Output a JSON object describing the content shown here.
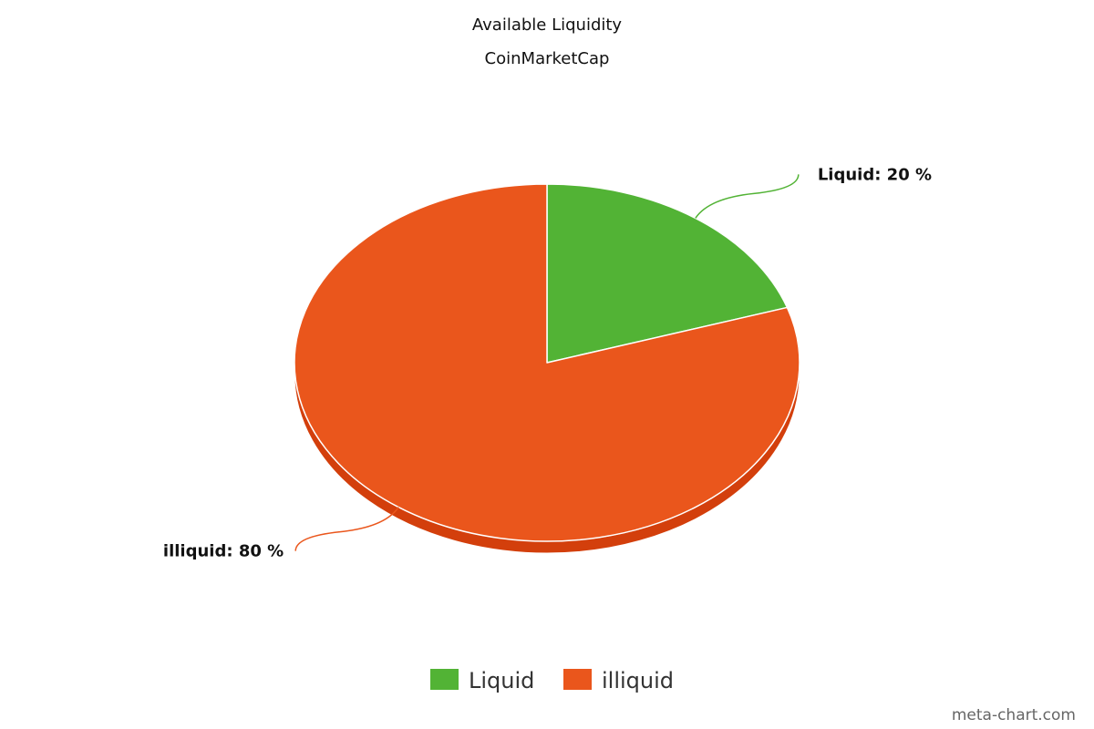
{
  "chart_data": {
    "type": "pie",
    "title": "Available Liquidity",
    "subtitle": "CoinMarketCap",
    "slices": [
      {
        "label": "Liquid",
        "value": 20,
        "data_label": "Liquid: 20 %",
        "color": "#52b335"
      },
      {
        "label": "illiquid",
        "value": 80,
        "data_label": "illiquid: 80 %",
        "color": "#ea561c"
      }
    ],
    "legend": {
      "position": "bottom",
      "entries": [
        "Liquid",
        "illiquid"
      ]
    },
    "three_d": true
  },
  "colors": {
    "illiquid_side": "#d33f0c"
  },
  "credit": "meta-chart.com"
}
